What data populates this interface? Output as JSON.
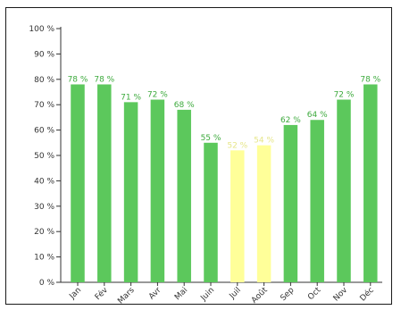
{
  "chart_data": {
    "type": "bar",
    "categories": [
      "Jan",
      "Fév",
      "Mars",
      "Avr",
      "Mai",
      "Juin",
      "Juil",
      "Août",
      "Sep",
      "Oct",
      "Nov",
      "Déc"
    ],
    "values": [
      78,
      78,
      71,
      72,
      68,
      55,
      52,
      54,
      62,
      64,
      72,
      78
    ],
    "data_labels": [
      "78 %",
      "78 %",
      "71 %",
      "72 %",
      "68 %",
      "55 %",
      "52 %",
      "54 %",
      "62 %",
      "64 %",
      "72 %",
      "78 %"
    ],
    "highlight": [
      false,
      false,
      false,
      false,
      false,
      false,
      true,
      true,
      false,
      false,
      false,
      false
    ],
    "y_ticks": [
      0,
      10,
      20,
      30,
      40,
      50,
      60,
      70,
      80,
      90,
      100
    ],
    "y_tick_labels": [
      "0 %",
      "10 %",
      "20 %",
      "30 %",
      "40 %",
      "50 %",
      "60 %",
      "70 %",
      "80 %",
      "90 %",
      "100 %"
    ],
    "ylim": [
      0,
      100
    ],
    "title": "",
    "xlabel": "",
    "ylabel": "",
    "grid": false,
    "colors": {
      "bar": "#5cc85c",
      "bar_highlight": "#ffff99",
      "label_normal": "#3daa3d",
      "label_highlight": "#e6e68a",
      "axis": "#333333"
    }
  }
}
